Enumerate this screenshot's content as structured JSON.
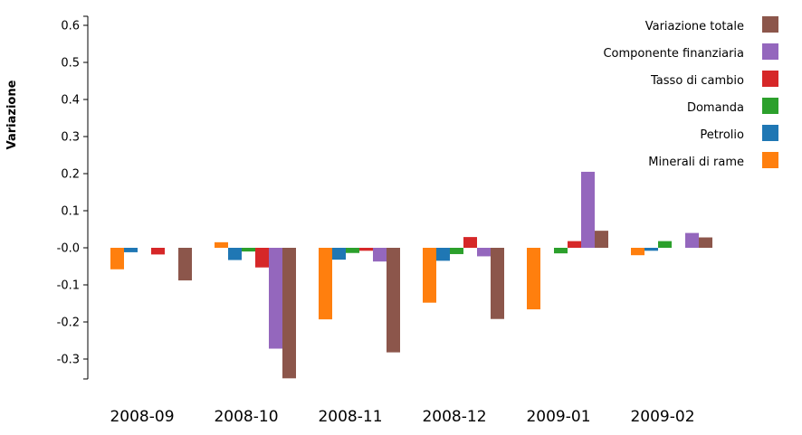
{
  "chart_data": {
    "type": "bar",
    "ylabel": "Variazione",
    "xlabel": "",
    "title": "",
    "ylim": [
      -0.35,
      0.62
    ],
    "yticks": [
      0.6,
      0.5,
      0.4,
      0.3,
      0.2,
      0.1,
      -0.0,
      -0.1,
      -0.2,
      -0.3
    ],
    "ytick_labels": [
      "0.6",
      "0.5",
      "0.4",
      "0.3",
      "0.2",
      "0.1",
      "-0.0",
      "-0.1",
      "-0.2",
      "-0.3"
    ],
    "categories": [
      "2008-09",
      "2008-10",
      "2008-11",
      "2008-12",
      "2009-01",
      "2009-02"
    ],
    "legend_position": "top-right",
    "series": [
      {
        "name": "Minerali di rame",
        "color": "#ff7f0e",
        "values": [
          -0.058,
          0.015,
          -0.193,
          -0.148,
          -0.166,
          -0.02
        ]
      },
      {
        "name": "Petrolio",
        "color": "#1f77b4",
        "values": [
          -0.012,
          -0.033,
          -0.032,
          -0.035,
          0.0,
          -0.008
        ]
      },
      {
        "name": "Domanda",
        "color": "#2ca02c",
        "values": [
          0.0,
          -0.01,
          -0.014,
          -0.017,
          -0.015,
          0.018
        ]
      },
      {
        "name": "Tasso di cambio",
        "color": "#d62728",
        "values": [
          -0.018,
          -0.053,
          -0.008,
          0.029,
          0.018,
          0.0
        ]
      },
      {
        "name": "Componente finanziaria",
        "color": "#9467bd",
        "values": [
          0.0,
          -0.272,
          -0.037,
          -0.023,
          0.205,
          0.04
        ]
      },
      {
        "name": "Variazione totale",
        "color": "#8c564b",
        "values": [
          -0.088,
          -0.352,
          -0.282,
          -0.192,
          0.046,
          0.028
        ]
      }
    ],
    "legend_order": [
      "Variazione totale",
      "Componente finanziaria",
      "Tasso di cambio",
      "Domanda",
      "Petrolio",
      "Minerali di rame"
    ]
  }
}
